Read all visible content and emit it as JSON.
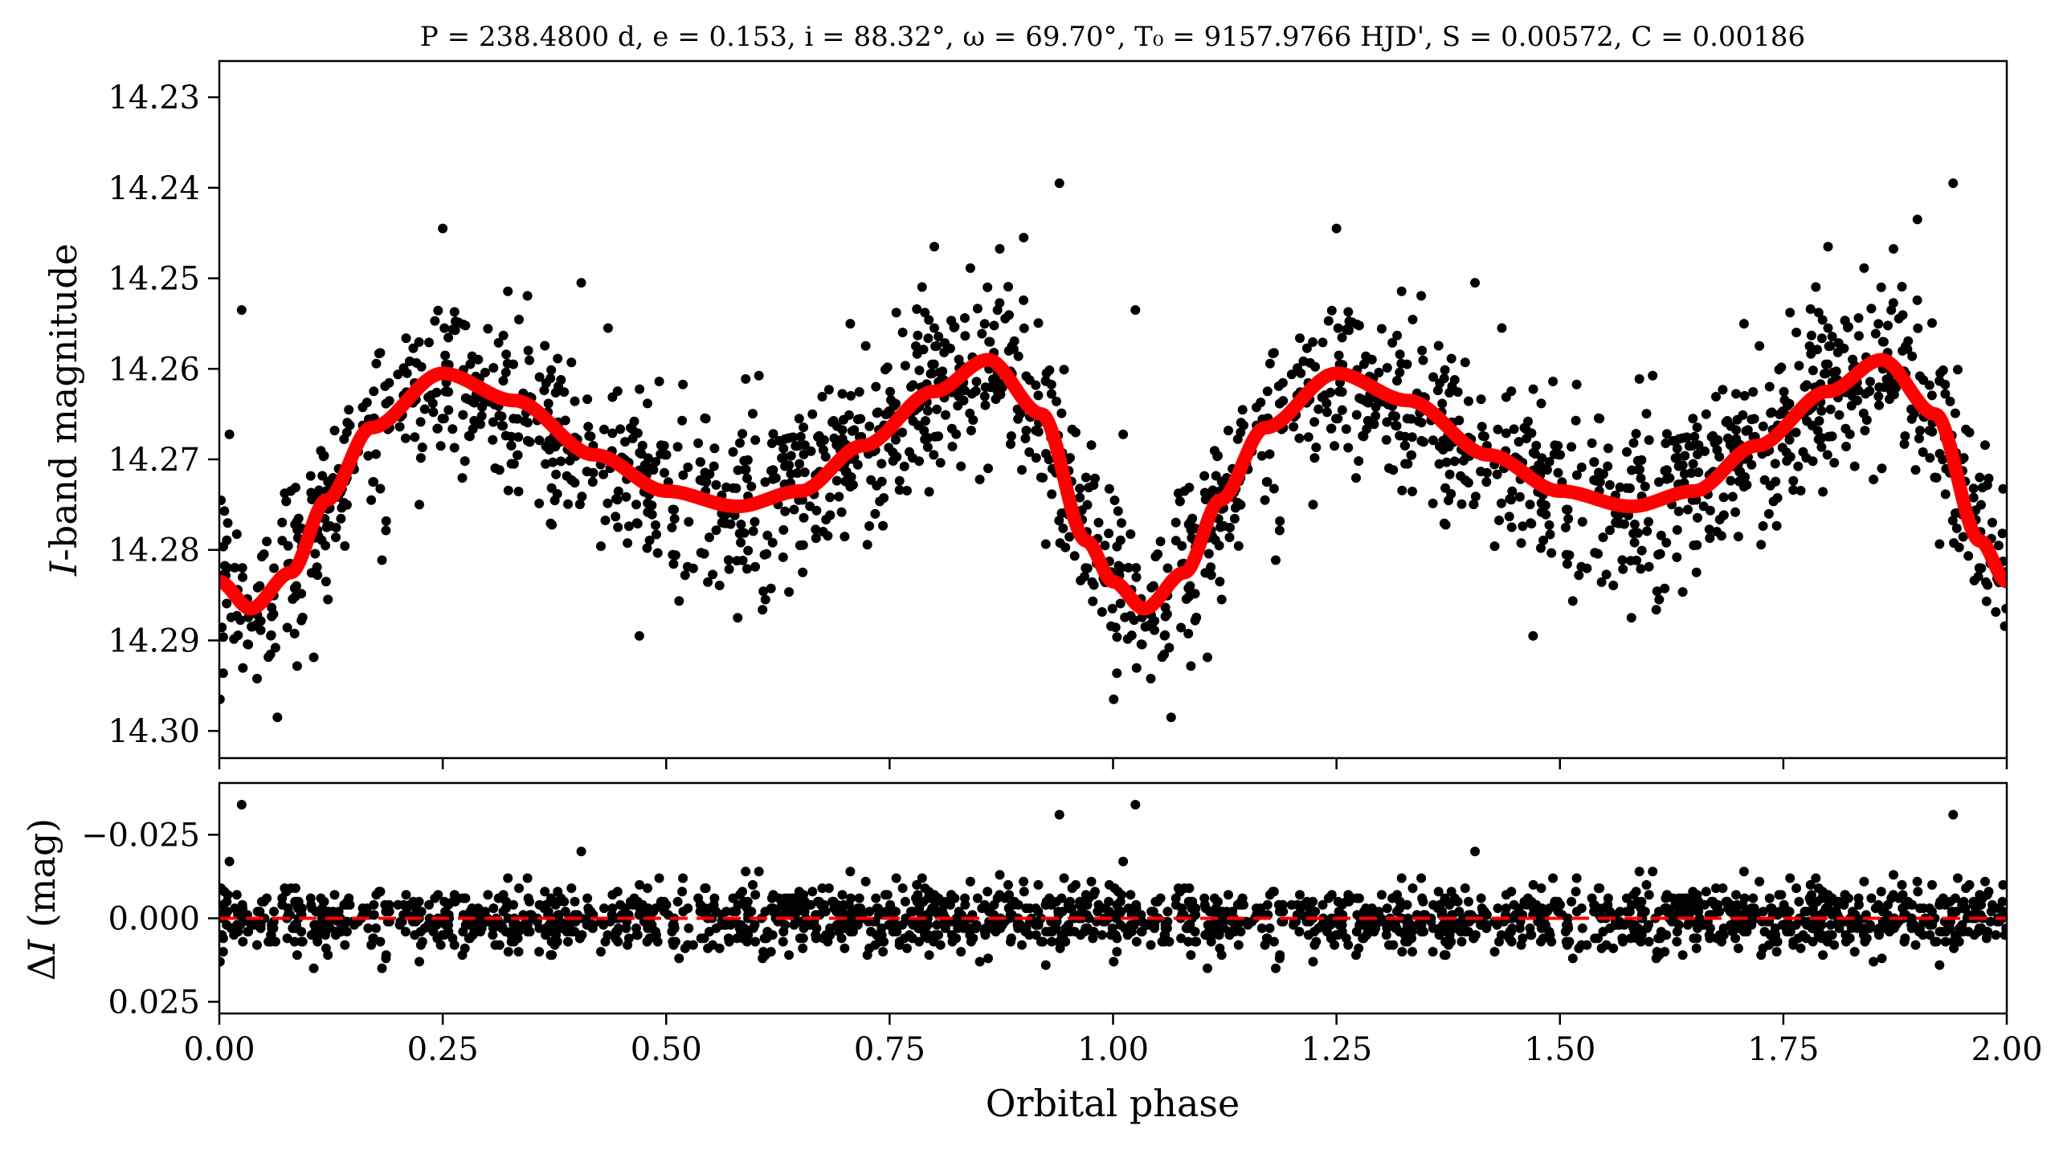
{
  "chart_data": [
    {
      "type": "scatter",
      "title": "P = 238.4800 d, e = 0.153, i = 88.32°, ω = 69.70°, T₀ = 9157.9766 HJD', S = 0.00572, C = 0.00186",
      "xlabel": "",
      "ylabel": "I-band magnitude",
      "xlim": [
        0.0,
        2.0
      ],
      "ylim": [
        14.303,
        14.226
      ],
      "y_inverted": true,
      "xticks": [
        0.0,
        0.25,
        0.5,
        0.75,
        1.0,
        1.25,
        1.5,
        1.75,
        2.0
      ],
      "yticks": [
        14.23,
        14.24,
        14.25,
        14.26,
        14.27,
        14.28,
        14.29,
        14.3
      ],
      "ytick_labels": [
        "14.23",
        "14.24",
        "14.25",
        "14.26",
        "14.27",
        "14.28",
        "14.29",
        "14.30"
      ],
      "grid": false,
      "point_color": "#000000",
      "model_color": "#ff0000",
      "model_curve": {
        "x": [
          0.0,
          0.035,
          0.08,
          0.12,
          0.17,
          0.25,
          0.33,
          0.42,
          0.5,
          0.58,
          0.65,
          0.72,
          0.8,
          0.86,
          0.92,
          0.97,
          1.0,
          1.035,
          1.08,
          1.12,
          1.17,
          1.25,
          1.33,
          1.42,
          1.5,
          1.58,
          1.65,
          1.72,
          1.8,
          1.86,
          1.92,
          1.97,
          2.0
        ],
        "y": [
          14.2835,
          14.2865,
          14.2825,
          14.2745,
          14.2665,
          14.2605,
          14.2635,
          14.2695,
          14.2735,
          14.2752,
          14.2735,
          14.2685,
          14.2625,
          14.259,
          14.265,
          14.279,
          14.2835,
          14.2865,
          14.2825,
          14.2745,
          14.2665,
          14.2605,
          14.2635,
          14.2695,
          14.2735,
          14.2752,
          14.2735,
          14.2685,
          14.2625,
          14.259,
          14.265,
          14.279,
          14.2835
        ]
      },
      "notable_points": {
        "x": [
          0.025,
          0.065,
          0.25,
          0.405,
          0.435,
          0.47,
          0.58,
          0.8,
          0.9,
          0.94,
          1.025,
          1.065,
          1.25,
          1.405,
          1.435,
          1.47,
          1.58,
          1.8,
          1.9,
          1.94
        ],
        "y": [
          14.2535,
          14.2985,
          14.2445,
          14.2505,
          14.2555,
          14.2895,
          14.2875,
          14.2465,
          14.2455,
          14.2395,
          14.2535,
          14.2985,
          14.2445,
          14.2505,
          14.2555,
          14.2895,
          14.2875,
          14.2465,
          14.2435,
          14.2395
        ]
      }
    },
    {
      "type": "scatter",
      "title": "",
      "xlabel": "Orbital phase",
      "ylabel": "ΔI (mag)",
      "xlim": [
        0.0,
        2.0
      ],
      "ylim": [
        0.0285,
        -0.0405
      ],
      "y_inverted": true,
      "xticks": [
        0.0,
        0.25,
        0.5,
        0.75,
        1.0,
        1.25,
        1.5,
        1.75,
        2.0
      ],
      "xtick_labels": [
        "0.00",
        "0.25",
        "0.50",
        "0.75",
        "1.00",
        "1.25",
        "1.50",
        "1.75",
        "2.00"
      ],
      "yticks": [
        -0.025,
        0.0,
        0.025
      ],
      "ytick_labels": [
        "−0.025",
        "0.000",
        "0.025"
      ],
      "zero_line": 0.0,
      "zero_line_color": "#ff0000",
      "point_color": "#000000",
      "notable_points": {
        "x": [
          0.025,
          0.405,
          0.94,
          1.025,
          1.405,
          1.94
        ],
        "y": [
          -0.034,
          -0.02,
          -0.031,
          -0.034,
          -0.02,
          -0.031
        ]
      }
    }
  ]
}
